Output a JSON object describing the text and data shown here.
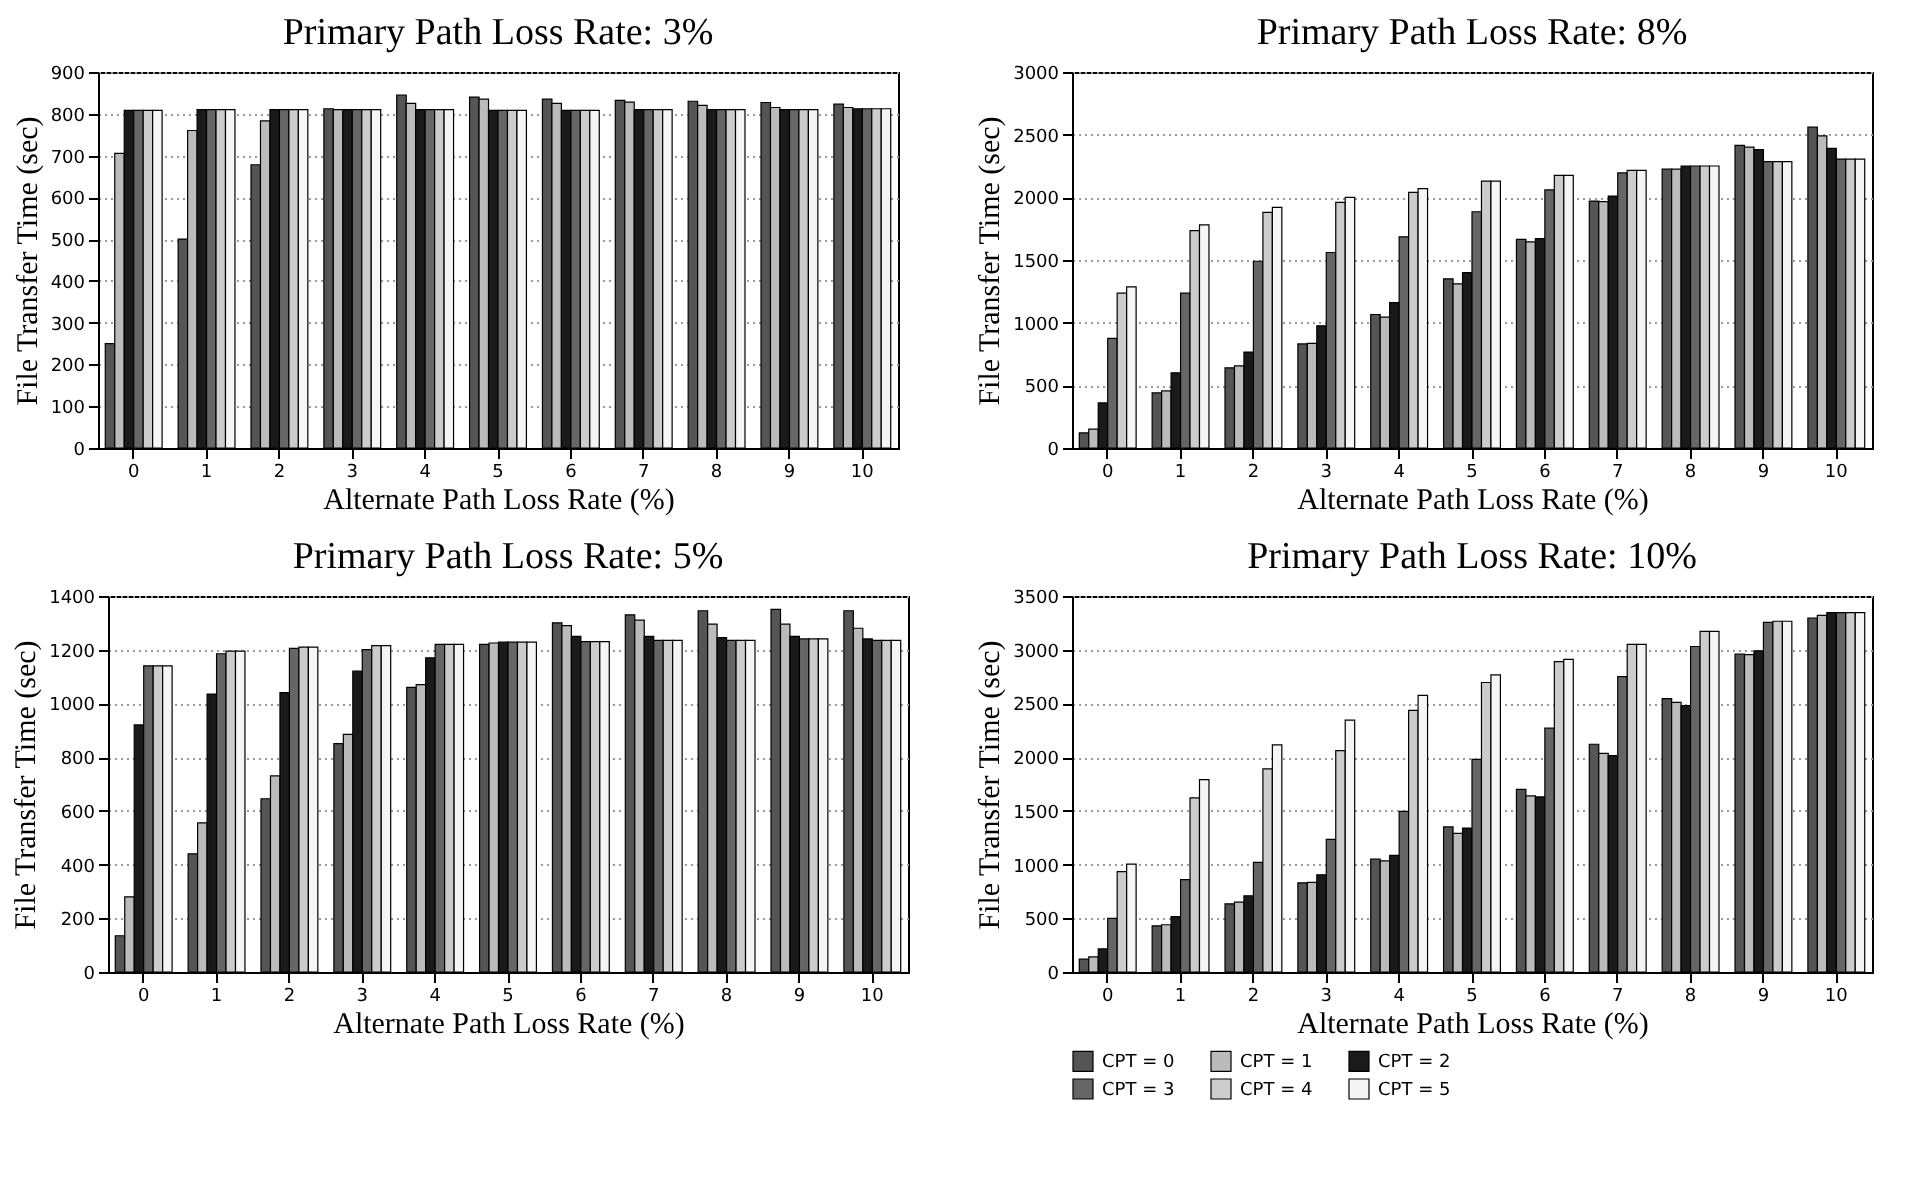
{
  "chart_data": [
    {
      "type": "bar",
      "title": "Primary Path Loss Rate: 3%",
      "xlabel": "Alternate Path Loss Rate (%)",
      "ylabel": "File Transfer Time (sec)",
      "categories": [
        "0",
        "1",
        "2",
        "3",
        "4",
        "5",
        "6",
        "7",
        "8",
        "9",
        "10"
      ],
      "ylim": [
        0,
        900
      ],
      "yticks": [
        0,
        100,
        200,
        300,
        400,
        500,
        600,
        700,
        800,
        900
      ],
      "grid": "y",
      "series": [
        {
          "color": "#555555",
          "values": [
            250,
            500,
            678,
            812,
            845,
            840,
            835,
            832,
            830,
            827,
            823
          ]
        },
        {
          "color": "#bbbbbb",
          "values": [
            705,
            760,
            783,
            810,
            825,
            835,
            825,
            828,
            820,
            815,
            815
          ]
        },
        {
          "color": "#1a1a1a",
          "values": [
            808,
            810,
            810,
            810,
            810,
            808,
            808,
            810,
            810,
            810,
            812
          ]
        },
        {
          "color": "#666666",
          "values": [
            808,
            810,
            810,
            810,
            810,
            808,
            808,
            810,
            810,
            810,
            812
          ]
        },
        {
          "color": "#cccccc",
          "values": [
            808,
            810,
            810,
            810,
            810,
            808,
            808,
            810,
            810,
            810,
            812
          ]
        },
        {
          "color": "#f5f5f5",
          "values": [
            808,
            810,
            810,
            810,
            810,
            808,
            808,
            810,
            810,
            810,
            812
          ]
        }
      ]
    },
    {
      "type": "bar",
      "title": "Primary Path Loss Rate: 8%",
      "xlabel": "Alternate Path Loss Rate (%)",
      "ylabel": "File Transfer Time (sec)",
      "categories": [
        "0",
        "1",
        "2",
        "3",
        "4",
        "5",
        "6",
        "7",
        "8",
        "9",
        "10"
      ],
      "ylim": [
        0,
        3000
      ],
      "yticks": [
        0,
        500,
        1000,
        1500,
        2000,
        2500,
        3000
      ],
      "grid": "y",
      "series": [
        {
          "color": "#555555",
          "values": [
            120,
            440,
            640,
            830,
            1065,
            1350,
            1665,
            1970,
            2225,
            2415,
            2560
          ]
        },
        {
          "color": "#bbbbbb",
          "values": [
            150,
            455,
            655,
            835,
            1045,
            1310,
            1645,
            1965,
            2225,
            2400,
            2490
          ]
        },
        {
          "color": "#1a1a1a",
          "values": [
            360,
            600,
            765,
            975,
            1160,
            1400,
            1670,
            2010,
            2250,
            2380,
            2390
          ]
        },
        {
          "color": "#666666",
          "values": [
            875,
            1235,
            1490,
            1560,
            1685,
            1885,
            2060,
            2195,
            2250,
            2285,
            2305
          ]
        },
        {
          "color": "#cccccc",
          "values": [
            1235,
            1735,
            1880,
            1960,
            2040,
            2130,
            2175,
            2215,
            2250,
            2285,
            2305
          ]
        },
        {
          "color": "#f5f5f5",
          "values": [
            1285,
            1780,
            1920,
            2000,
            2070,
            2130,
            2175,
            2215,
            2250,
            2285,
            2305
          ]
        }
      ]
    },
    {
      "type": "bar",
      "title": "Primary Path Loss Rate: 5%",
      "xlabel": "Alternate Path Loss Rate (%)",
      "ylabel": "File Transfer Time (sec)",
      "categories": [
        "0",
        "1",
        "2",
        "3",
        "4",
        "5",
        "6",
        "7",
        "8",
        "9",
        "10"
      ],
      "ylim": [
        0,
        1400
      ],
      "yticks": [
        0,
        200,
        400,
        600,
        800,
        1000,
        1200,
        1400
      ],
      "grid": "y",
      "series": [
        {
          "color": "#555555",
          "values": [
            135,
            440,
            645,
            850,
            1060,
            1220,
            1300,
            1330,
            1345,
            1350,
            1345
          ]
        },
        {
          "color": "#bbbbbb",
          "values": [
            280,
            555,
            730,
            885,
            1070,
            1225,
            1290,
            1310,
            1295,
            1295,
            1280
          ]
        },
        {
          "color": "#1a1a1a",
          "values": [
            920,
            1035,
            1040,
            1120,
            1170,
            1228,
            1250,
            1250,
            1245,
            1250,
            1240
          ]
        },
        {
          "color": "#666666",
          "values": [
            1140,
            1185,
            1205,
            1200,
            1220,
            1228,
            1230,
            1235,
            1235,
            1240,
            1235
          ]
        },
        {
          "color": "#cccccc",
          "values": [
            1140,
            1195,
            1210,
            1215,
            1220,
            1228,
            1230,
            1235,
            1235,
            1240,
            1235
          ]
        },
        {
          "color": "#f5f5f5",
          "values": [
            1140,
            1195,
            1210,
            1215,
            1220,
            1228,
            1230,
            1235,
            1235,
            1240,
            1235
          ]
        }
      ]
    },
    {
      "type": "bar",
      "title": "Primary Path Loss Rate: 10%",
      "xlabel": "Alternate Path Loss Rate (%)",
      "ylabel": "File Transfer Time (sec)",
      "categories": [
        "0",
        "1",
        "2",
        "3",
        "4",
        "5",
        "6",
        "7",
        "8",
        "9",
        "10"
      ],
      "ylim": [
        0,
        3500
      ],
      "yticks": [
        0,
        500,
        1000,
        1500,
        2000,
        2500,
        3000,
        3500
      ],
      "grid": "y",
      "legend": "bottom",
      "series": [
        {
          "name": "CPT = 0",
          "color": "#555555",
          "values": [
            120,
            430,
            635,
            830,
            1050,
            1350,
            1700,
            2120,
            2545,
            2960,
            3295
          ]
        },
        {
          "name": "CPT = 1",
          "color": "#bbbbbb",
          "values": [
            140,
            440,
            650,
            835,
            1035,
            1290,
            1640,
            2035,
            2510,
            2955,
            3320
          ]
        },
        {
          "name": "CPT = 2",
          "color": "#1a1a1a",
          "values": [
            215,
            515,
            710,
            905,
            1085,
            1340,
            1630,
            2015,
            2480,
            2990,
            3345
          ]
        },
        {
          "name": "CPT = 3",
          "color": "#666666",
          "values": [
            500,
            860,
            1020,
            1235,
            1495,
            1980,
            2270,
            2750,
            3030,
            3255,
            3345
          ]
        },
        {
          "name": "CPT = 4",
          "color": "#cccccc",
          "values": [
            935,
            1620,
            1890,
            2060,
            2435,
            2695,
            2890,
            3050,
            3170,
            3265,
            3345
          ]
        },
        {
          "name": "CPT = 5",
          "color": "#f5f5f5",
          "values": [
            1005,
            1790,
            2115,
            2345,
            2575,
            2765,
            2910,
            3050,
            3170,
            3265,
            3345
          ]
        }
      ]
    }
  ]
}
